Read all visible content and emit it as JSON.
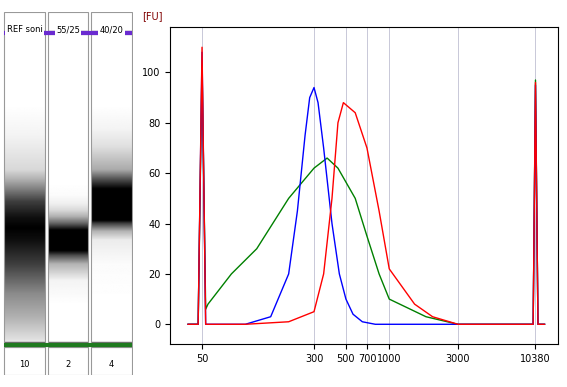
{
  "chart_data": {
    "type": "line",
    "y_label": "[FU]",
    "log": "x",
    "grid": "x",
    "xlim": [
      30,
      15000
    ],
    "xticks": [
      50,
      300,
      500,
      700,
      1000,
      3000,
      10380
    ],
    "ylim": [
      -8,
      118
    ],
    "yticks": [
      0,
      20,
      40,
      60,
      80,
      100
    ],
    "series": [
      {
        "color": "#008000",
        "x": [
          40,
          47,
          50,
          53,
          55,
          80,
          120,
          200,
          300,
          370,
          440,
          580,
          700,
          850,
          1000,
          1800,
          3000,
          9500,
          10000,
          10380,
          10800,
          12000
        ],
        "values": [
          0,
          0,
          103,
          6,
          8,
          20,
          30,
          50,
          62,
          66,
          62,
          50,
          35,
          20,
          10,
          3,
          0,
          0,
          0,
          97,
          0,
          0
        ]
      },
      {
        "color": "#0000ff",
        "x": [
          40,
          47,
          50,
          53,
          100,
          150,
          200,
          230,
          260,
          280,
          300,
          320,
          350,
          400,
          450,
          500,
          560,
          650,
          800,
          9500,
          10000,
          10380,
          10800,
          12000
        ],
        "values": [
          0,
          0,
          108,
          0,
          0,
          3,
          20,
          45,
          75,
          90,
          94,
          88,
          70,
          40,
          20,
          10,
          4,
          1,
          0,
          0,
          0,
          95,
          0,
          0
        ]
      },
      {
        "color": "#ff0000",
        "x": [
          40,
          47,
          50,
          53,
          100,
          200,
          300,
          350,
          400,
          440,
          480,
          580,
          700,
          850,
          1000,
          1500,
          2000,
          3000,
          9500,
          10000,
          10380,
          10800,
          12000
        ],
        "values": [
          0,
          0,
          110,
          0,
          0,
          1,
          5,
          20,
          50,
          80,
          88,
          84,
          70,
          45,
          22,
          8,
          3,
          0,
          0,
          0,
          96,
          0,
          0
        ]
      }
    ],
    "gel": {
      "lanes": [
        {
          "label": "REF soni",
          "well": 10
        },
        {
          "label": "55/25",
          "well": 2
        },
        {
          "label": "40/20",
          "well": 4
        }
      ]
    }
  }
}
